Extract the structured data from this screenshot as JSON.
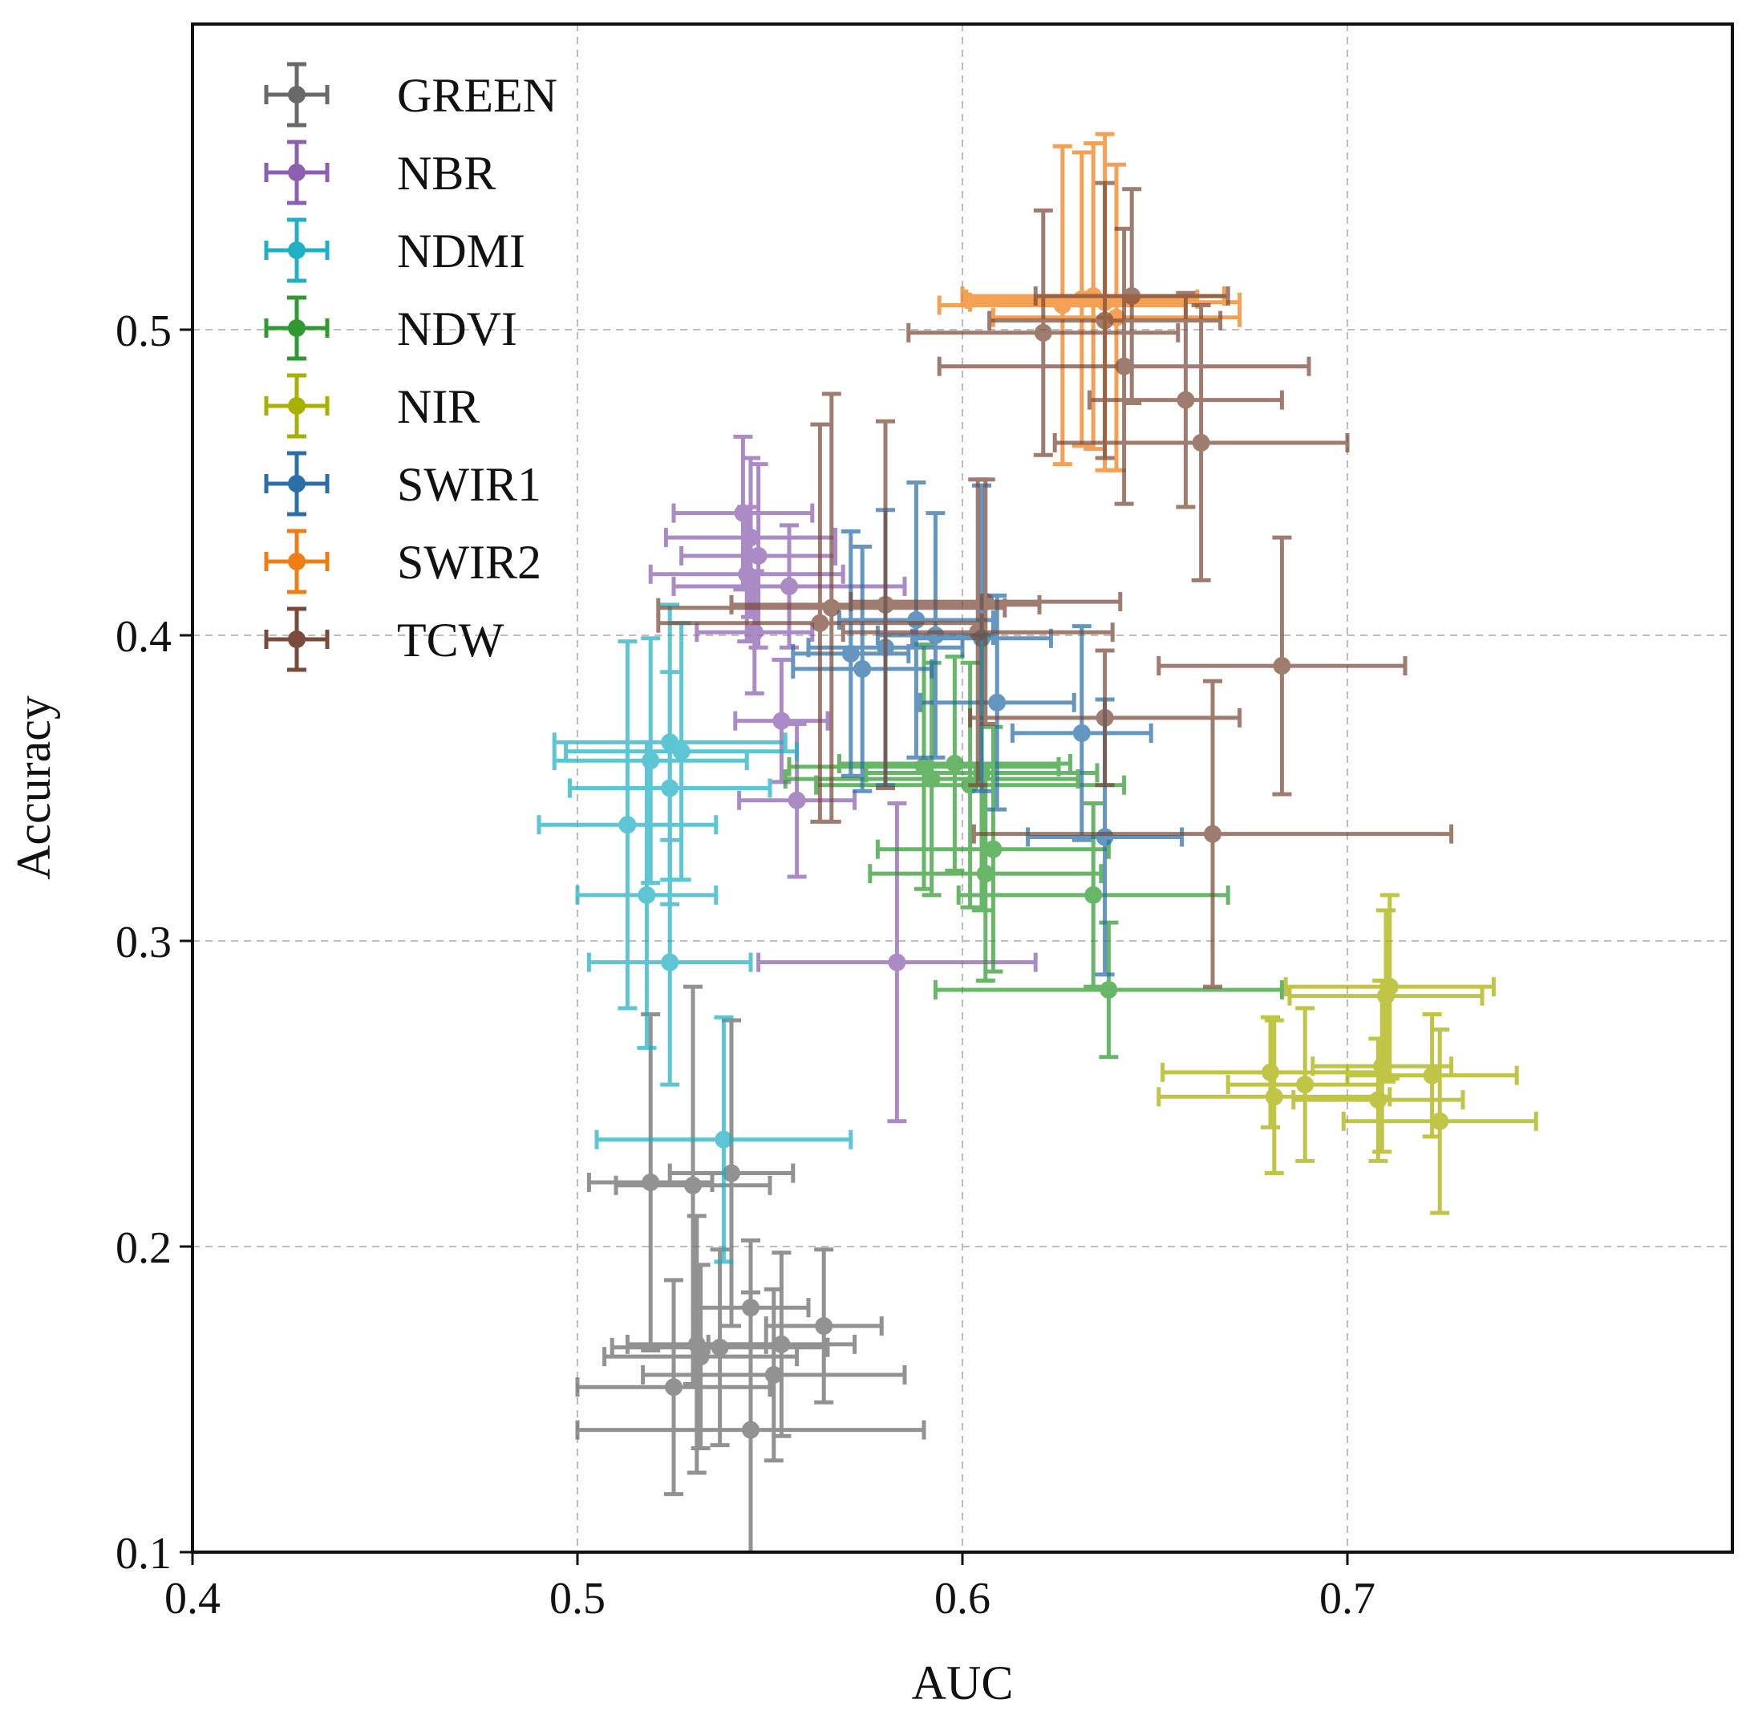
{
  "chart_data": {
    "type": "scatter",
    "title": "",
    "xlabel": "AUC",
    "ylabel": "Accuracy",
    "xlim": [
      0.4,
      0.8
    ],
    "ylim": [
      0.1,
      0.6
    ],
    "xticks": [
      0.4,
      0.5,
      0.6,
      0.7
    ],
    "yticks": [
      0.1,
      0.2,
      0.3,
      0.4,
      0.5
    ],
    "xtick_labels": [
      "0.4",
      "0.5",
      "0.6",
      "0.7"
    ],
    "ytick_labels": [
      "0.1",
      "0.2",
      "0.3",
      "0.4",
      "0.5"
    ],
    "grid": true,
    "legend_position": "top-left",
    "error_bars": true,
    "series": [
      {
        "name": "GREEN",
        "color": "#696969",
        "points": [
          {
            "x": 0.519,
            "y": 0.221,
            "xerr": 0.016,
            "yerr": 0.055
          },
          {
            "x": 0.53,
            "y": 0.22,
            "xerr": 0.02,
            "yerr": 0.065
          },
          {
            "x": 0.531,
            "y": 0.168,
            "xerr": 0.018,
            "yerr": 0.042
          },
          {
            "x": 0.54,
            "y": 0.224,
            "xerr": 0.016,
            "yerr": 0.05
          },
          {
            "x": 0.537,
            "y": 0.167,
            "xerr": 0.028,
            "yerr": 0.032
          },
          {
            "x": 0.532,
            "y": 0.164,
            "xerr": 0.025,
            "yerr": 0.03
          },
          {
            "x": 0.525,
            "y": 0.154,
            "xerr": 0.025,
            "yerr": 0.035
          },
          {
            "x": 0.545,
            "y": 0.14,
            "xerr": 0.045,
            "yerr": 0.045
          },
          {
            "x": 0.551,
            "y": 0.158,
            "xerr": 0.034,
            "yerr": 0.028
          },
          {
            "x": 0.553,
            "y": 0.168,
            "xerr": 0.019,
            "yerr": 0.03
          },
          {
            "x": 0.564,
            "y": 0.174,
            "xerr": 0.015,
            "yerr": 0.025
          },
          {
            "x": 0.545,
            "y": 0.18,
            "xerr": 0.015,
            "yerr": 0.022
          }
        ]
      },
      {
        "name": "NBR",
        "color": "#8c5fb0",
        "points": [
          {
            "x": 0.543,
            "y": 0.44,
            "xerr": 0.018,
            "yerr": 0.025
          },
          {
            "x": 0.545,
            "y": 0.432,
            "xerr": 0.022,
            "yerr": 0.026
          },
          {
            "x": 0.547,
            "y": 0.426,
            "xerr": 0.02,
            "yerr": 0.03
          },
          {
            "x": 0.544,
            "y": 0.42,
            "xerr": 0.025,
            "yerr": 0.022
          },
          {
            "x": 0.546,
            "y": 0.401,
            "xerr": 0.015,
            "yerr": 0.02
          },
          {
            "x": 0.553,
            "y": 0.372,
            "xerr": 0.012,
            "yerr": 0.02
          },
          {
            "x": 0.557,
            "y": 0.346,
            "xerr": 0.015,
            "yerr": 0.025
          },
          {
            "x": 0.583,
            "y": 0.293,
            "xerr": 0.036,
            "yerr": 0.052
          },
          {
            "x": 0.555,
            "y": 0.416,
            "xerr": 0.03,
            "yerr": 0.02
          }
        ]
      },
      {
        "name": "NDMI",
        "color": "#1fb0c4",
        "points": [
          {
            "x": 0.524,
            "y": 0.365,
            "xerr": 0.03,
            "yerr": 0.045
          },
          {
            "x": 0.519,
            "y": 0.359,
            "xerr": 0.025,
            "yerr": 0.04
          },
          {
            "x": 0.524,
            "y": 0.35,
            "xerr": 0.026,
            "yerr": 0.038
          },
          {
            "x": 0.513,
            "y": 0.338,
            "xerr": 0.023,
            "yerr": 0.06
          },
          {
            "x": 0.518,
            "y": 0.315,
            "xerr": 0.018,
            "yerr": 0.05
          },
          {
            "x": 0.524,
            "y": 0.293,
            "xerr": 0.021,
            "yerr": 0.04
          },
          {
            "x": 0.538,
            "y": 0.235,
            "xerr": 0.033,
            "yerr": 0.04
          },
          {
            "x": 0.527,
            "y": 0.362,
            "xerr": 0.03,
            "yerr": 0.042
          }
        ]
      },
      {
        "name": "NDVI",
        "color": "#2f9a2f",
        "points": [
          {
            "x": 0.59,
            "y": 0.357,
            "xerr": 0.035,
            "yerr": 0.04
          },
          {
            "x": 0.592,
            "y": 0.353,
            "xerr": 0.038,
            "yerr": 0.038
          },
          {
            "x": 0.605,
            "y": 0.355,
            "xerr": 0.03,
            "yerr": 0.045
          },
          {
            "x": 0.602,
            "y": 0.351,
            "xerr": 0.04,
            "yerr": 0.04
          },
          {
            "x": 0.608,
            "y": 0.33,
            "xerr": 0.03,
            "yerr": 0.04
          },
          {
            "x": 0.606,
            "y": 0.322,
            "xerr": 0.03,
            "yerr": 0.035
          },
          {
            "x": 0.634,
            "y": 0.315,
            "xerr": 0.035,
            "yerr": 0.03
          },
          {
            "x": 0.638,
            "y": 0.284,
            "xerr": 0.045,
            "yerr": 0.022
          },
          {
            "x": 0.598,
            "y": 0.358,
            "xerr": 0.03,
            "yerr": 0.035
          }
        ]
      },
      {
        "name": "NIR",
        "color": "#a8b000",
        "points": [
          {
            "x": 0.711,
            "y": 0.285,
            "xerr": 0.027,
            "yerr": 0.03
          },
          {
            "x": 0.71,
            "y": 0.282,
            "xerr": 0.025,
            "yerr": 0.028
          },
          {
            "x": 0.68,
            "y": 0.257,
            "xerr": 0.028,
            "yerr": 0.018
          },
          {
            "x": 0.681,
            "y": 0.249,
            "xerr": 0.03,
            "yerr": 0.025
          },
          {
            "x": 0.689,
            "y": 0.253,
            "xerr": 0.02,
            "yerr": 0.025
          },
          {
            "x": 0.709,
            "y": 0.259,
            "xerr": 0.018,
            "yerr": 0.028
          },
          {
            "x": 0.708,
            "y": 0.248,
            "xerr": 0.022,
            "yerr": 0.02
          },
          {
            "x": 0.722,
            "y": 0.256,
            "xerr": 0.022,
            "yerr": 0.02
          },
          {
            "x": 0.724,
            "y": 0.241,
            "xerr": 0.025,
            "yerr": 0.03
          }
        ]
      },
      {
        "name": "SWIR1",
        "color": "#2a6fa8",
        "points": [
          {
            "x": 0.574,
            "y": 0.389,
            "xerr": 0.018,
            "yerr": 0.04
          },
          {
            "x": 0.58,
            "y": 0.396,
            "xerr": 0.02,
            "yerr": 0.045
          },
          {
            "x": 0.588,
            "y": 0.405,
            "xerr": 0.02,
            "yerr": 0.045
          },
          {
            "x": 0.593,
            "y": 0.4,
            "xerr": 0.015,
            "yerr": 0.04
          },
          {
            "x": 0.605,
            "y": 0.399,
            "xerr": 0.018,
            "yerr": 0.05
          },
          {
            "x": 0.609,
            "y": 0.378,
            "xerr": 0.02,
            "yerr": 0.035
          },
          {
            "x": 0.631,
            "y": 0.368,
            "xerr": 0.018,
            "yerr": 0.035
          },
          {
            "x": 0.637,
            "y": 0.334,
            "xerr": 0.02,
            "yerr": 0.045
          },
          {
            "x": 0.571,
            "y": 0.394,
            "xerr": 0.015,
            "yerr": 0.04
          }
        ]
      },
      {
        "name": "SWIR2",
        "color": "#f07d14",
        "points": [
          {
            "x": 0.626,
            "y": 0.508,
            "xerr": 0.032,
            "yerr": 0.052
          },
          {
            "x": 0.634,
            "y": 0.511,
            "xerr": 0.034,
            "yerr": 0.05
          },
          {
            "x": 0.637,
            "y": 0.509,
            "xerr": 0.035,
            "yerr": 0.055
          },
          {
            "x": 0.631,
            "y": 0.51,
            "xerr": 0.03,
            "yerr": 0.048
          },
          {
            "x": 0.64,
            "y": 0.504,
            "xerr": 0.032,
            "yerr": 0.05
          }
        ]
      },
      {
        "name": "TCW",
        "color": "#7a4a3a",
        "points": [
          {
            "x": 0.566,
            "y": 0.409,
            "xerr": 0.045,
            "yerr": 0.07
          },
          {
            "x": 0.563,
            "y": 0.404,
            "xerr": 0.042,
            "yerr": 0.065
          },
          {
            "x": 0.58,
            "y": 0.41,
            "xerr": 0.04,
            "yerr": 0.06
          },
          {
            "x": 0.604,
            "y": 0.401,
            "xerr": 0.035,
            "yerr": 0.05
          },
          {
            "x": 0.606,
            "y": 0.411,
            "xerr": 0.035,
            "yerr": 0.04
          },
          {
            "x": 0.637,
            "y": 0.373,
            "xerr": 0.035,
            "yerr": 0.022
          },
          {
            "x": 0.665,
            "y": 0.335,
            "xerr": 0.062,
            "yerr": 0.05
          },
          {
            "x": 0.683,
            "y": 0.39,
            "xerr": 0.032,
            "yerr": 0.042
          },
          {
            "x": 0.621,
            "y": 0.499,
            "xerr": 0.035,
            "yerr": 0.04
          },
          {
            "x": 0.637,
            "y": 0.503,
            "xerr": 0.03,
            "yerr": 0.045
          },
          {
            "x": 0.644,
            "y": 0.511,
            "xerr": 0.025,
            "yerr": 0.035
          },
          {
            "x": 0.642,
            "y": 0.488,
            "xerr": 0.048,
            "yerr": 0.045
          },
          {
            "x": 0.658,
            "y": 0.477,
            "xerr": 0.025,
            "yerr": 0.035
          },
          {
            "x": 0.662,
            "y": 0.463,
            "xerr": 0.038,
            "yerr": 0.045
          }
        ]
      }
    ]
  }
}
